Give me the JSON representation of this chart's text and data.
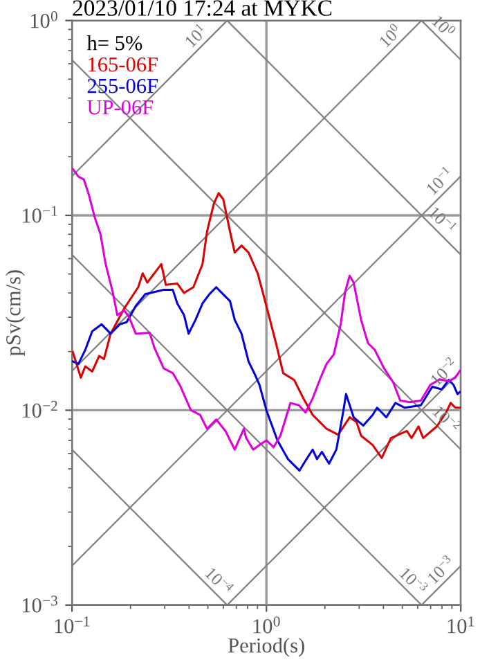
{
  "chart_data": {
    "type": "line",
    "title": "2023/01/10 17:24 at MYKC",
    "xlabel": "Period(s)",
    "ylabel": "pSv(cm/s)",
    "legend_title": "h= 5%",
    "legend": "top left",
    "log": "xy",
    "grid": true,
    "xlim": [
      0.1,
      10
    ],
    "ylim": [
      0.001,
      1
    ],
    "xticks": [
      {
        "value": 0.1,
        "label": "10$^{−1}$"
      },
      {
        "value": 1,
        "label": "10$^{0}$"
      },
      {
        "value": 10,
        "label": "10$^{1}$"
      }
    ],
    "yticks": [
      {
        "value": 0.001,
        "label": "10$^{−3}$"
      },
      {
        "value": 0.01,
        "label": "10$^{−2}$"
      },
      {
        "value": 0.1,
        "label": "10$^{−1}$"
      },
      {
        "value": 1,
        "label": "10$^{0}$"
      }
    ],
    "series": [
      {
        "name": "165-06F",
        "color": "#dd0000",
        "x": [
          0.101,
          0.111,
          0.117,
          0.127,
          0.138,
          0.146,
          0.158,
          0.186,
          0.219,
          0.231,
          0.244,
          0.288,
          0.304,
          0.348,
          0.377,
          0.421,
          0.469,
          0.495,
          0.537,
          0.568,
          0.6,
          0.65,
          0.687,
          0.745,
          0.809,
          0.902,
          1.0,
          1.12,
          1.22,
          1.39,
          1.55,
          1.73,
          2.04,
          2.34,
          2.68,
          2.91,
          3.07,
          3.52,
          3.92,
          4.37,
          5.28,
          5.58,
          6.06,
          6.4,
          7.53,
          8.4,
          8.87,
          9.37,
          9.89
        ],
        "values": [
          0.0199,
          0.0147,
          0.0168,
          0.0158,
          0.019,
          0.0183,
          0.0247,
          0.0334,
          0.0428,
          0.0504,
          0.0452,
          0.0562,
          0.044,
          0.0447,
          0.04,
          0.0428,
          0.0562,
          0.0826,
          0.115,
          0.13,
          0.121,
          0.0826,
          0.0645,
          0.07,
          0.0645,
          0.0504,
          0.0343,
          0.0221,
          0.0155,
          0.0143,
          0.0115,
          0.00946,
          0.00803,
          0.00748,
          0.0092,
          0.0087,
          0.0074,
          0.00663,
          0.00569,
          0.0072,
          0.00782,
          0.0072,
          0.00826,
          0.0072,
          0.00826,
          0.00973,
          0.0109,
          0.0103,
          0.0103
        ]
      },
      {
        "name": "255-06F",
        "color": "#0000dd",
        "x": [
          0.101,
          0.108,
          0.117,
          0.127,
          0.142,
          0.158,
          0.176,
          0.191,
          0.213,
          0.238,
          0.265,
          0.296,
          0.33,
          0.348,
          0.377,
          0.398,
          0.432,
          0.469,
          0.509,
          0.552,
          0.599,
          0.65,
          0.687,
          0.745,
          0.809,
          0.877,
          0.921,
          1.0,
          1.14,
          1.29,
          1.48,
          1.61,
          1.73,
          1.82,
          1.93,
          2.1,
          2.29,
          2.48,
          2.57,
          2.81,
          3.15,
          3.52,
          3.71,
          4.14,
          4.61,
          5.15,
          6.23,
          7.13,
          7.98,
          8.67,
          9.17,
          9.62,
          9.89
        ],
        "values": [
          0.0178,
          0.0173,
          0.0204,
          0.0254,
          0.0276,
          0.0247,
          0.0276,
          0.0283,
          0.0343,
          0.0394,
          0.0404,
          0.0415,
          0.0415,
          0.0353,
          0.0308,
          0.0247,
          0.0291,
          0.0353,
          0.0394,
          0.0428,
          0.0394,
          0.0363,
          0.0291,
          0.0247,
          0.0178,
          0.0151,
          0.0135,
          0.01,
          0.007,
          0.00562,
          0.0049,
          0.00562,
          0.00628,
          0.00562,
          0.00611,
          0.00532,
          0.00628,
          0.00973,
          0.0121,
          0.0092,
          0.00834,
          0.00946,
          0.0103,
          0.0092,
          0.0109,
          0.0103,
          0.0106,
          0.0132,
          0.0128,
          0.0143,
          0.0135,
          0.0121,
          0.0124
        ]
      },
      {
        "name": "UP-06F",
        "color": "#dd00dd",
        "x": [
          0.101,
          0.108,
          0.115,
          0.122,
          0.131,
          0.14,
          0.149,
          0.162,
          0.171,
          0.186,
          0.197,
          0.213,
          0.251,
          0.265,
          0.296,
          0.33,
          0.358,
          0.409,
          0.456,
          0.495,
          0.552,
          0.616,
          0.687,
          0.766,
          0.787,
          0.855,
          0.921,
          1.0,
          1.09,
          1.18,
          1.33,
          1.47,
          1.59,
          1.73,
          1.88,
          2.04,
          2.22,
          2.41,
          2.54,
          2.68,
          2.81,
          3.07,
          3.33,
          3.61,
          4.03,
          4.49,
          4.88,
          5.46,
          6.23,
          6.97,
          7.78,
          8.67,
          9.37,
          9.89
        ],
        "values": [
          0.173,
          0.158,
          0.153,
          0.128,
          0.0973,
          0.0803,
          0.0562,
          0.0404,
          0.0308,
          0.0325,
          0.0299,
          0.0247,
          0.025,
          0.021,
          0.0164,
          0.0155,
          0.0135,
          0.01,
          0.00946,
          0.00803,
          0.00896,
          0.00782,
          0.00628,
          0.00803,
          0.0072,
          0.00628,
          0.00663,
          0.007,
          0.00646,
          0.0074,
          0.0109,
          0.0106,
          0.00973,
          0.0115,
          0.0143,
          0.0173,
          0.0193,
          0.0276,
          0.0404,
          0.049,
          0.0452,
          0.0291,
          0.0221,
          0.0204,
          0.0164,
          0.0139,
          0.0112,
          0.011,
          0.0112,
          0.0135,
          0.0144,
          0.0141,
          0.0147,
          0.0159
        ]
      },
      {
        "color": "#808080",
        "x": [
          0.1,
          0.628
        ],
        "values": [
          0.159,
          1
        ]
      },
      {
        "color": "#808080",
        "x": [
          0.1,
          6.28
        ],
        "values": [
          0.0159,
          1
        ]
      },
      {
        "color": "#808080",
        "x": [
          0.1,
          10
        ],
        "values": [
          0.00159,
          0.159
        ]
      },
      {
        "color": "#808080",
        "x": [
          0.628,
          10
        ],
        "values": [
          0.001,
          0.0159
        ]
      },
      {
        "color": "#808080",
        "x": [
          6.28,
          10
        ],
        "values": [
          0.001,
          0.00159
        ]
      },
      {
        "color": "#808080",
        "x": [
          6.28,
          10
        ],
        "values": [
          1,
          0.628
        ]
      },
      {
        "color": "#808080",
        "x": [
          0.628,
          10
        ],
        "values": [
          1,
          0.0628
        ]
      },
      {
        "color": "#808080",
        "x": [
          0.1,
          10
        ],
        "values": [
          0.628,
          0.00628
        ]
      },
      {
        "color": "#808080",
        "x": [
          0.1,
          6.28
        ],
        "values": [
          0.0628,
          0.001
        ]
      },
      {
        "color": "#808080",
        "x": [
          0.1,
          0.628
        ],
        "values": [
          0.00628,
          0.001
        ]
      }
    ],
    "annotations": [
      {
        "text": "10$^{1}$",
        "x": 0.44,
        "y": 0.7
      },
      {
        "text": "10$^{0}$",
        "x": 4.4,
        "y": 0.7
      },
      {
        "text": "10$^{0}$",
        "x": 8.0,
        "y": 0.785
      },
      {
        "text": "10$^{−1}$",
        "x": 7.9,
        "y": 0.126
      },
      {
        "text": "10$^{−1}$",
        "x": 7.9,
        "y": 0.0795
      },
      {
        "text": "10$^{−2}$",
        "x": 8.3,
        "y": 0.0132
      },
      {
        "text": "10$^{−2}$",
        "x": 8.3,
        "y": 0.00757
      },
      {
        "text": "10$^{−4}$",
        "x": 0.56,
        "y": 0.00112
      },
      {
        "text": "10$^{−3}$",
        "x": 5.6,
        "y": 0.00112
      },
      {
        "text": "10$^{−3}$",
        "x": 8.0,
        "y": 0.00127
      }
    ]
  }
}
